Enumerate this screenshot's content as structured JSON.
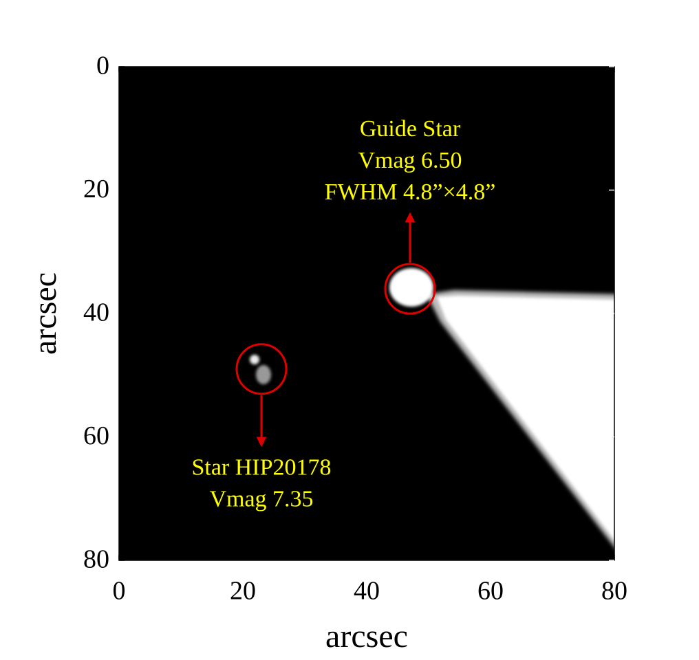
{
  "chart_data": {
    "type": "image",
    "xlabel": "arcsec",
    "ylabel": "arcsec",
    "xlim": [
      0,
      80
    ],
    "ylim": [
      80,
      0
    ],
    "xticks": [
      0,
      20,
      40,
      60,
      80
    ],
    "yticks": [
      0,
      20,
      40,
      60,
      80
    ],
    "annotation_color": "#ffff00",
    "marker_color": "#e00000",
    "sources": [
      {
        "lines": [
          "Guide Star",
          "Vmag 6.50",
          "FWHM 4.8”×4.8”"
        ],
        "x": 47,
        "y": 36,
        "label_side": "above"
      },
      {
        "lines": [
          "Star HIP20178",
          "Vmag 7.35"
        ],
        "x": 23,
        "y": 49,
        "label_side": "below"
      }
    ]
  }
}
